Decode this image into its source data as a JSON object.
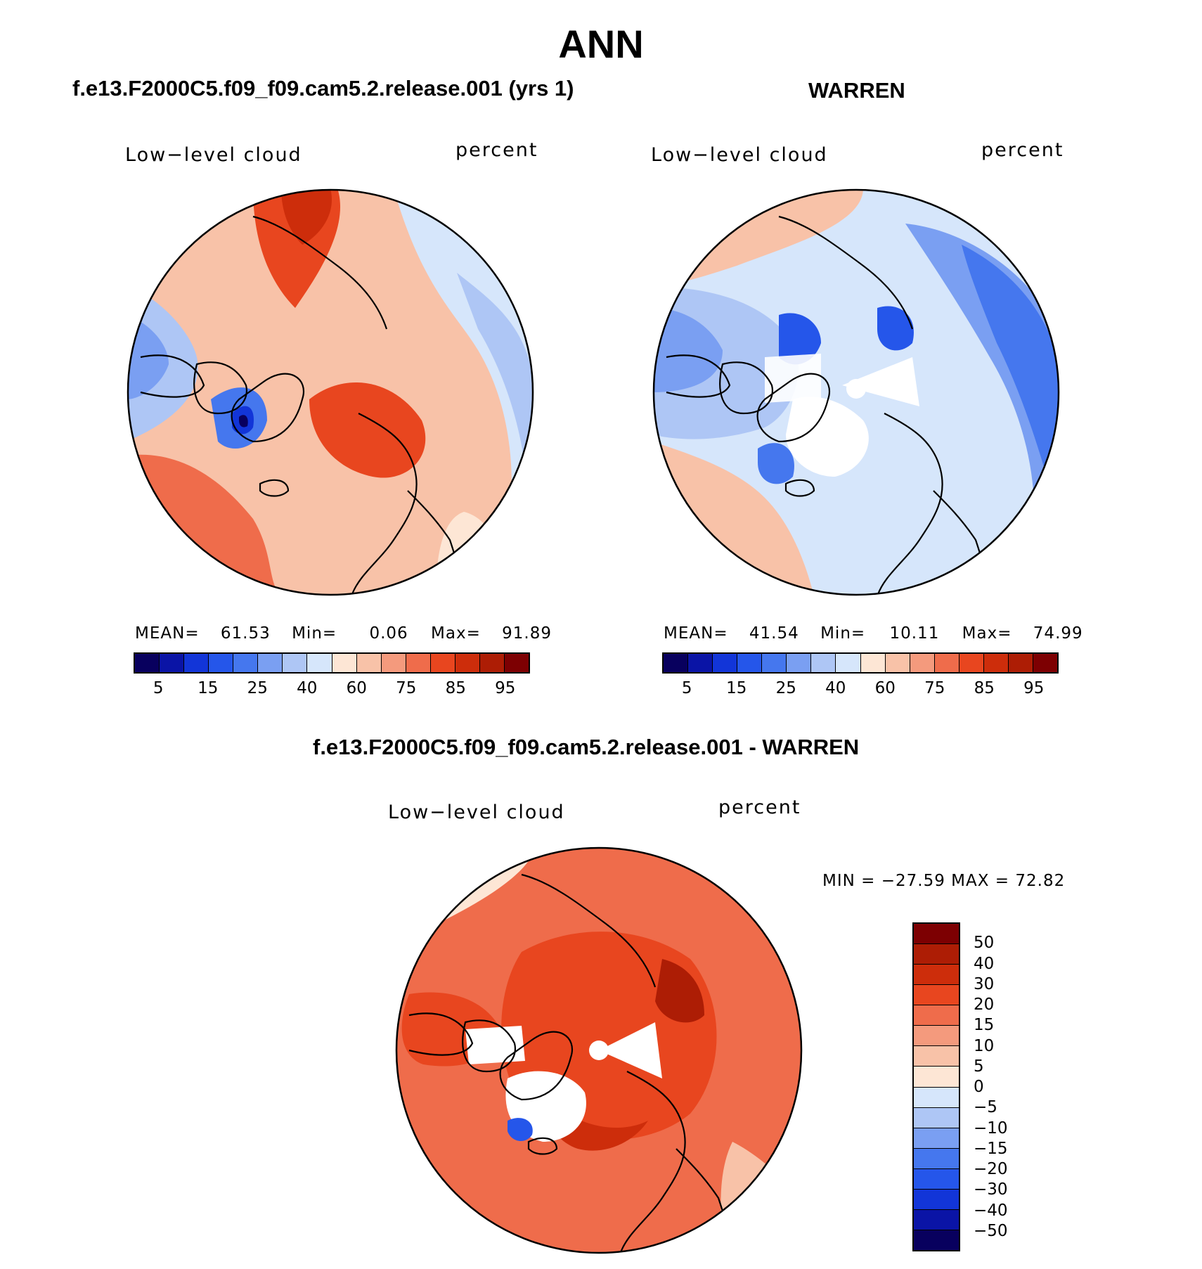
{
  "title": "ANN",
  "panels": [
    {
      "id": "model",
      "header": "f.e13.F2000C5.f09_f09.cam5.2.release.001 (yrs 1)",
      "variable": "Low−level cloud",
      "units": "percent",
      "stats": {
        "mean_label": "MEAN=",
        "mean": "61.53",
        "min_label": "Min=",
        "min": "0.06",
        "max_label": "Max=",
        "max": "91.89"
      }
    },
    {
      "id": "obs",
      "header": "WARREN",
      "variable": "Low−level cloud",
      "units": "percent",
      "stats": {
        "mean_label": "MEAN=",
        "mean": "41.54",
        "min_label": "Min=",
        "min": "10.11",
        "max_label": "Max=",
        "max": "74.99"
      }
    },
    {
      "id": "diff",
      "header": "f.e13.F2000C5.f09_f09.cam5.2.release.001 - WARREN",
      "variable": "Low−level cloud",
      "units": "percent",
      "minmax_text": "MIN = −27.59 MAX =   72.82"
    }
  ],
  "abs_colorbar": {
    "colors": [
      "#08005e",
      "#0a14a6",
      "#1235d8",
      "#2556ea",
      "#4577ee",
      "#7a9ff2",
      "#aec6f5",
      "#d6e6fb",
      "#fde6d5",
      "#f8c2a8",
      "#f49a7d",
      "#ef6c4b",
      "#e8461f",
      "#cd2d0b",
      "#ad1d05",
      "#7d0002"
    ],
    "ticks": [
      "5",
      "15",
      "25",
      "40",
      "60",
      "75",
      "85",
      "95"
    ]
  },
  "diff_colorbar": {
    "colors": [
      "#7d0002",
      "#ad1d05",
      "#cd2d0b",
      "#e8461f",
      "#ef6c4b",
      "#f49a7d",
      "#f8c2a8",
      "#fde6d5",
      "#d6e6fb",
      "#aec6f5",
      "#7a9ff2",
      "#4577ee",
      "#2556ea",
      "#1235d8",
      "#0a14a6",
      "#08005e"
    ],
    "ticks": [
      "50",
      "40",
      "30",
      "20",
      "15",
      "10",
      "5",
      "0",
      "−5",
      "−10",
      "−15",
      "−20",
      "−30",
      "−40",
      "−50"
    ]
  }
}
